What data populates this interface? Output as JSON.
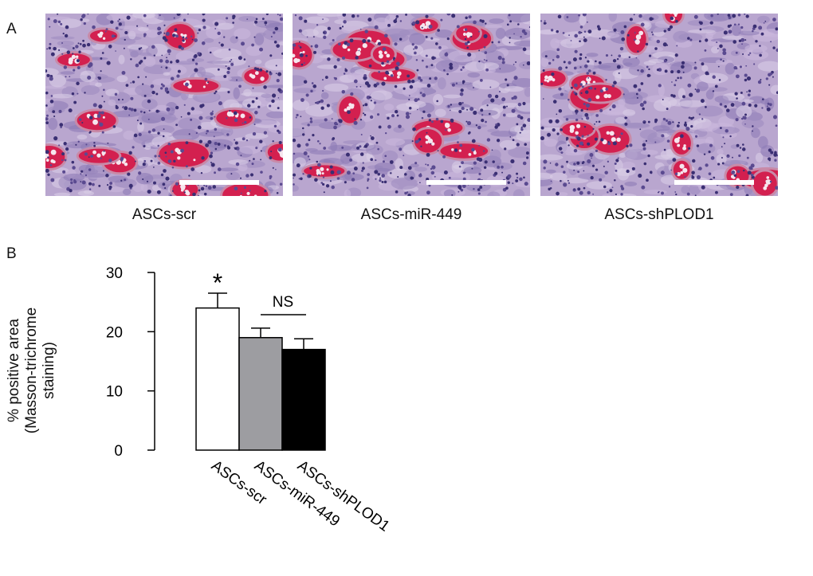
{
  "panel_a": {
    "letter": "A",
    "images": [
      {
        "caption": "ASCs-scr"
      },
      {
        "caption": "ASCs-miR-449"
      },
      {
        "caption": "ASCs-shPLOD1"
      }
    ]
  },
  "panel_b": {
    "letter": "B"
  },
  "chart_data": {
    "type": "bar",
    "categories": [
      "ASCs-scr",
      "ASCs-miR-449",
      "ASCs-shPLOD1"
    ],
    "values": [
      24.0,
      19.0,
      17.0
    ],
    "error_upper": [
      26.5,
      20.6,
      18.8
    ],
    "bar_colors": [
      "#ffffff",
      "#9d9da1",
      "#000000"
    ],
    "ylabel_lines": [
      "% positive area",
      "(Masson-trichrome",
      "staining)"
    ],
    "ylim": [
      0,
      30
    ],
    "yticks": [
      "0",
      "10",
      "20",
      "30"
    ],
    "annotations": {
      "significance": "*",
      "ns": "NS"
    },
    "grid": false,
    "legend": "none"
  }
}
